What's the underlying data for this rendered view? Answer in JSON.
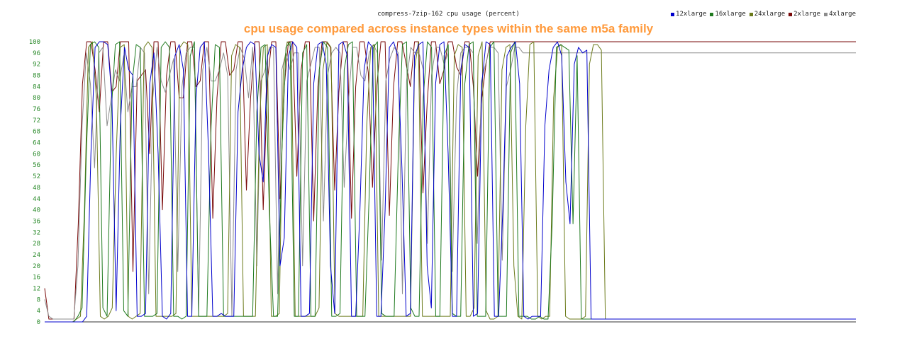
{
  "chart_data": {
    "type": "line",
    "title": "compress-7zip-162 cpu usage (percent)",
    "subtitle": "cpu usage compared across instance types within the same m5a family",
    "ylim": [
      0,
      100
    ],
    "yticks": [
      0,
      4,
      8,
      12,
      16,
      20,
      24,
      28,
      32,
      36,
      40,
      44,
      48,
      52,
      56,
      60,
      64,
      68,
      72,
      76,
      80,
      84,
      88,
      92,
      96,
      100
    ],
    "ytick_labels": [
      "0",
      "4",
      "8",
      "12",
      "16",
      "20",
      "24",
      "28",
      "32",
      "36",
      "40",
      "44",
      "48",
      "52",
      "56",
      "60",
      "64",
      "68",
      "72",
      "76",
      "80",
      "84",
      "88",
      "92",
      "96",
      "100"
    ],
    "grid": false,
    "legend_position": "top-right",
    "series": [
      {
        "name": "12xlarge",
        "color": "#0000cc",
        "values": [
          0,
          0,
          0,
          0,
          0,
          0,
          0,
          0,
          0,
          0,
          2,
          60,
          98,
          100,
          100,
          99,
          80,
          4,
          70,
          98,
          90,
          88,
          2,
          2,
          3,
          85,
          96,
          60,
          2,
          1,
          3,
          95,
          99,
          90,
          2,
          2,
          80,
          98,
          100,
          60,
          2,
          2,
          3,
          2,
          2,
          2,
          75,
          90,
          98,
          100,
          99,
          60,
          50,
          95,
          99,
          98,
          20,
          30,
          95,
          100,
          98,
          2,
          2,
          3,
          85,
          99,
          100,
          92,
          20,
          3,
          99,
          100,
          95,
          2,
          2,
          40,
          90,
          100,
          98,
          2,
          2,
          40,
          98,
          100,
          95,
          55,
          2,
          3,
          95,
          99,
          100,
          20,
          5,
          85,
          99,
          100,
          60,
          2,
          2,
          90,
          99,
          98,
          2,
          3,
          85,
          100,
          99,
          2,
          2,
          40,
          95,
          98,
          100,
          85,
          2,
          1,
          2,
          2,
          2,
          70,
          90,
          98,
          100,
          95,
          50,
          35,
          92,
          98,
          96,
          97,
          1,
          1,
          1,
          1,
          1,
          1,
          1,
          1,
          1,
          1,
          1,
          1,
          1,
          1,
          1,
          1,
          1,
          1,
          1,
          1,
          1,
          1,
          1,
          1,
          1,
          1,
          1,
          1,
          1,
          1,
          1,
          1,
          1,
          1,
          1,
          1,
          1,
          1,
          1,
          1,
          1,
          1,
          1,
          1,
          1,
          1,
          1,
          1,
          1,
          1,
          1,
          1,
          1,
          1,
          1,
          1,
          1,
          1,
          1,
          1,
          1,
          1,
          1,
          1
        ]
      },
      {
        "name": "16xlarge",
        "color": "#1f7a1f",
        "values": [
          0,
          0,
          0,
          0,
          0,
          0,
          0,
          0,
          2,
          5,
          60,
          99,
          100,
          98,
          5,
          2,
          75,
          99,
          100,
          4,
          2,
          85,
          99,
          98,
          2,
          2,
          2,
          3,
          98,
          100,
          98,
          2,
          2,
          1,
          2,
          95,
          100,
          2,
          2,
          2,
          70,
          99,
          98,
          2,
          2,
          2,
          2,
          2,
          2,
          2,
          2,
          75,
          98,
          99,
          40,
          2,
          2,
          60,
          98,
          100,
          2,
          2,
          96,
          99,
          2,
          2,
          90,
          100,
          98,
          2,
          2,
          3,
          90,
          99,
          100,
          2,
          2,
          2,
          45,
          98,
          100,
          3,
          2,
          2,
          2,
          60,
          99,
          100,
          5,
          2,
          2,
          80,
          100,
          98,
          2,
          2,
          95,
          99,
          3,
          2,
          2,
          85,
          99,
          100,
          2,
          2,
          2,
          98,
          100,
          2,
          2,
          2,
          96,
          100,
          2,
          2,
          2,
          1,
          1,
          2,
          1,
          1,
          35,
          98,
          99,
          98,
          97,
          35,
          95,
          1,
          1,
          1,
          1,
          1,
          1,
          1,
          1,
          1,
          1,
          1,
          1,
          1,
          1,
          1,
          1,
          1,
          1,
          1,
          1,
          1,
          1,
          1,
          1,
          1,
          1,
          1,
          1,
          1,
          1,
          1,
          1,
          1,
          1,
          1,
          1,
          1,
          1,
          1,
          1,
          1,
          1,
          1,
          1,
          1,
          1,
          1,
          1,
          1,
          1,
          1,
          1,
          1,
          1,
          1,
          1,
          1,
          1,
          1,
          1,
          1,
          1,
          1,
          1,
          1,
          1,
          1
        ]
      },
      {
        "name": "24xlarge",
        "color": "#6b7a1a",
        "values": [
          0,
          0,
          0,
          0,
          0,
          0,
          0,
          0,
          1,
          2,
          40,
          98,
          100,
          80,
          2,
          1,
          2,
          5,
          60,
          98,
          99,
          2,
          1,
          2,
          3,
          98,
          100,
          98,
          2,
          2,
          2,
          2,
          2,
          3,
          98,
          100,
          99,
          2,
          2,
          2,
          2,
          2,
          2,
          2,
          2,
          2,
          3,
          95,
          99,
          98,
          2,
          2,
          2,
          2,
          70,
          98,
          99,
          2,
          2,
          3,
          90,
          100,
          98,
          2,
          2,
          2,
          2,
          2,
          2,
          5,
          90,
          100,
          98,
          3,
          2,
          2,
          2,
          2,
          2,
          2,
          2,
          70,
          98,
          99,
          2,
          2,
          2,
          2,
          2,
          2,
          2,
          2,
          2,
          90,
          100,
          2,
          2,
          2,
          2,
          2,
          2,
          2,
          2,
          95,
          99,
          98,
          2,
          2,
          5,
          95,
          100,
          4,
          1,
          1,
          2,
          90,
          98,
          99,
          20,
          2,
          1,
          70,
          99,
          100,
          2,
          1,
          2,
          2,
          80,
          98,
          99,
          2,
          1,
          1,
          1,
          1,
          2,
          92,
          99,
          99,
          97,
          1,
          1,
          1,
          1,
          1,
          1,
          1,
          1,
          1,
          1,
          1,
          1,
          1,
          1,
          1,
          1,
          1,
          1,
          1,
          1,
          1,
          1,
          1,
          1,
          1,
          1,
          1,
          1,
          1,
          1,
          1,
          1,
          1,
          1,
          1,
          1,
          1,
          1,
          1,
          1,
          1,
          1,
          1,
          1,
          1,
          1,
          1,
          1,
          1,
          1,
          1,
          1,
          1,
          1,
          1,
          1,
          1,
          1,
          1,
          1,
          1,
          1,
          1,
          1
        ]
      },
      {
        "name": "2xlarge",
        "color": "#7a0a0a",
        "values": [
          12,
          1,
          1,
          1,
          1,
          1,
          1,
          1,
          35,
          85,
          100,
          100,
          90,
          75,
          100,
          100,
          82,
          84,
          100,
          100,
          100,
          18,
          86,
          88,
          90,
          60,
          100,
          100,
          40,
          88,
          100,
          100,
          80,
          80,
          100,
          100,
          84,
          86,
          100,
          100,
          37,
          80,
          100,
          100,
          88,
          90,
          100,
          100,
          47,
          80,
          100,
          100,
          40,
          86,
          100,
          100,
          44,
          84,
          100,
          100,
          52,
          90,
          100,
          100,
          36,
          84,
          100,
          100,
          98,
          47,
          82,
          100,
          100,
          37,
          84,
          100,
          100,
          89,
          48,
          84,
          100,
          100,
          38,
          84,
          100,
          100,
          92,
          84,
          100,
          100,
          46,
          78,
          100,
          100,
          85,
          90,
          100,
          100,
          91,
          88,
          100,
          100,
          84,
          52,
          80,
          92,
          100,
          100,
          100,
          100,
          100,
          100,
          100,
          100,
          100,
          100,
          100,
          100,
          100,
          100,
          100,
          100,
          100,
          100,
          100,
          100,
          100,
          100,
          100,
          100,
          100,
          100,
          100,
          100,
          100,
          100,
          100,
          100,
          100,
          100,
          100,
          100,
          100,
          100,
          100,
          100,
          100,
          100,
          100,
          100,
          100,
          100,
          100,
          100,
          100,
          100,
          100,
          100,
          100,
          100,
          100,
          100,
          100,
          100,
          100,
          100,
          100,
          100,
          100,
          100,
          100,
          100,
          100,
          100,
          100,
          100,
          100,
          100,
          100,
          100,
          100,
          100,
          100,
          100,
          100,
          100,
          100,
          100,
          100,
          100,
          100,
          100,
          100,
          100
        ]
      },
      {
        "name": "4xlarge",
        "color": "#8c8c8c",
        "values": [
          8,
          2,
          1,
          1,
          1,
          1,
          1,
          1,
          20,
          70,
          96,
          85,
          55,
          96,
          98,
          70,
          80,
          90,
          86,
          95,
          75,
          84,
          84,
          98,
          96,
          10,
          80,
          98,
          86,
          82,
          88,
          94,
          18,
          84,
          96,
          98,
          98,
          2,
          90,
          98,
          86,
          86,
          90,
          96,
          88,
          2,
          90,
          98,
          94,
          80,
          98,
          20,
          86,
          90,
          98,
          98,
          10,
          90,
          96,
          90,
          96,
          96,
          20,
          86,
          92,
          98,
          98,
          36,
          88,
          96,
          98,
          96,
          48,
          78,
          98,
          98,
          88,
          86,
          96,
          99,
          96,
          22,
          86,
          94,
          98,
          96,
          10,
          86,
          98,
          96,
          96,
          90,
          28,
          88,
          98,
          98,
          92,
          96,
          18,
          80,
          96,
          98,
          98,
          96,
          28,
          86,
          92,
          98,
          98,
          96,
          22,
          84,
          90,
          98,
          98,
          96,
          96,
          96,
          96,
          96,
          96,
          96,
          96,
          96,
          96,
          96,
          96,
          96,
          96,
          96,
          96,
          96,
          96,
          96,
          96,
          96,
          96,
          96,
          96,
          96,
          96,
          96,
          96,
          96,
          96,
          96,
          96,
          96,
          96,
          96,
          96,
          96,
          96,
          96,
          96,
          96,
          96,
          96,
          96,
          96,
          96,
          96,
          96,
          96,
          96,
          96,
          96,
          96,
          96,
          96,
          96,
          96,
          96,
          96,
          96,
          96,
          96,
          96,
          96,
          96,
          96,
          96,
          96,
          96,
          96,
          96,
          96,
          96,
          96,
          96,
          96,
          96,
          96,
          96,
          96,
          96
        ]
      }
    ]
  }
}
